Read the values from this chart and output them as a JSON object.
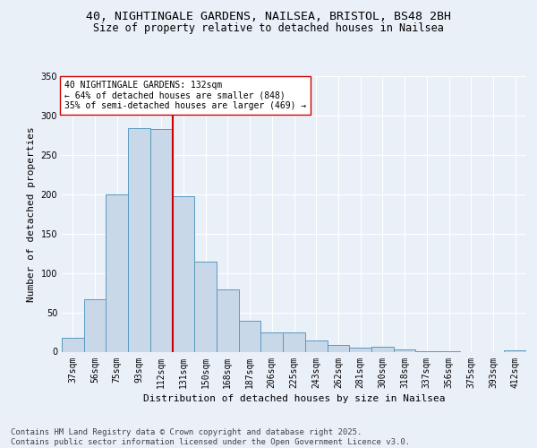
{
  "title_line1": "40, NIGHTINGALE GARDENS, NAILSEA, BRISTOL, BS48 2BH",
  "title_line2": "Size of property relative to detached houses in Nailsea",
  "xlabel": "Distribution of detached houses by size in Nailsea",
  "ylabel": "Number of detached properties",
  "categories": [
    "37sqm",
    "56sqm",
    "75sqm",
    "93sqm",
    "112sqm",
    "131sqm",
    "150sqm",
    "168sqm",
    "187sqm",
    "206sqm",
    "225sqm",
    "243sqm",
    "262sqm",
    "281sqm",
    "300sqm",
    "318sqm",
    "337sqm",
    "356sqm",
    "375sqm",
    "393sqm",
    "412sqm"
  ],
  "values": [
    18,
    67,
    200,
    284,
    283,
    197,
    114,
    79,
    39,
    25,
    25,
    14,
    9,
    5,
    6,
    3,
    1,
    1,
    0,
    0,
    2
  ],
  "bar_color": "#c8d8e8",
  "bar_edge_color": "#5a9abf",
  "vline_index": 5,
  "vline_color": "#cc0000",
  "annotation_text": "40 NIGHTINGALE GARDENS: 132sqm\n← 64% of detached houses are smaller (848)\n35% of semi-detached houses are larger (469) →",
  "annotation_box_color": "#ffffff",
  "annotation_box_edge": "#cc0000",
  "ylim": [
    0,
    350
  ],
  "yticks": [
    0,
    50,
    100,
    150,
    200,
    250,
    300,
    350
  ],
  "bg_color": "#eaf0f8",
  "plot_bg_color": "#eaf0f8",
  "footer": "Contains HM Land Registry data © Crown copyright and database right 2025.\nContains public sector information licensed under the Open Government Licence v3.0.",
  "title_fontsize": 9.5,
  "subtitle_fontsize": 8.5,
  "axis_label_fontsize": 8,
  "tick_fontsize": 7,
  "annotation_fontsize": 7,
  "footer_fontsize": 6.5
}
